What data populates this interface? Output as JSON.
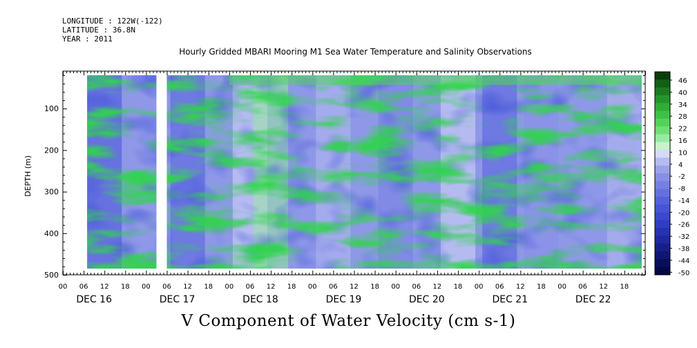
{
  "header": {
    "longitude": "LONGITUDE : 122W(-122)",
    "latitude": "LATITUDE : 36.8N",
    "year": "YEAR : 2011"
  },
  "chart_data": {
    "type": "heatmap",
    "title": "Hourly Gridded MBARI Mooring M1 Sea Water Temperature and Salinity Observations",
    "xlabel": "V Component of Water Velocity (cm s-1)",
    "ylabel": "DEPTH (m)",
    "x_start": "DEC 16 00",
    "x_end": "DEC 22 24",
    "x_tick_hours": [
      "00",
      "06",
      "12",
      "18",
      "00",
      "06",
      "12",
      "18",
      "00",
      "06",
      "12",
      "18",
      "00",
      "06",
      "12",
      "18",
      "00",
      "06",
      "12",
      "18",
      "00",
      "06",
      "12",
      "18",
      "00",
      "06",
      "12",
      "18"
    ],
    "x_day_labels": [
      "DEC 16",
      "DEC 17",
      "DEC 18",
      "DEC 19",
      "DEC 20",
      "DEC 21",
      "DEC 22"
    ],
    "y_ticks": [
      100,
      200,
      300,
      400,
      500
    ],
    "ylim": [
      500,
      10
    ],
    "y_reversed": true,
    "data_depth_range_m": [
      20,
      485
    ],
    "data_gaps": [
      {
        "start": "DEC 16 00",
        "end": "DEC 16 07"
      },
      {
        "start": "DEC 17 03",
        "end": "DEC 17 06"
      }
    ],
    "colorbar": {
      "labels": [
        "46",
        "40",
        "34",
        "28",
        "22",
        "16",
        "10",
        "4",
        "-2",
        "-8",
        "-14",
        "-20",
        "-26",
        "-32",
        "-38",
        "-44",
        "-50"
      ],
      "range": [
        -50,
        49
      ],
      "levels_per_label": 2,
      "colors": [
        "#0a3e0c",
        "#145e16",
        "#1c7a20",
        "#24952a",
        "#2fae36",
        "#3dc245",
        "#52d35a",
        "#6fe076",
        "#98eaa0",
        "#c7f2cc",
        "#d6d9f7",
        "#b6bbef",
        "#9aa2ea",
        "#8790e5",
        "#7680e2",
        "#6570df",
        "#5461dc",
        "#4754d8",
        "#3a47cf",
        "#303cc2",
        "#2732b2",
        "#1f28a0",
        "#171e8a",
        "#101573",
        "#0a0d5c",
        "#050842"
      ]
    },
    "v_component_by_hour_at_50m": [
      {
        "time": "DEC 16 12",
        "v": -20
      },
      {
        "time": "DEC 17 12",
        "v": -14
      },
      {
        "time": "DEC 18 06",
        "v": 10
      },
      {
        "time": "DEC 18 12",
        "v": 16
      },
      {
        "time": "DEC 19 06",
        "v": 4
      },
      {
        "time": "DEC 20 00",
        "v": -8
      },
      {
        "time": "DEC 20 18",
        "v": 10
      },
      {
        "time": "DEC 21 06",
        "v": -14
      },
      {
        "time": "DEC 21 18",
        "v": -2
      },
      {
        "time": "DEC 22 18",
        "v": 4
      }
    ],
    "grid": false,
    "legend": "colorbar-right"
  }
}
